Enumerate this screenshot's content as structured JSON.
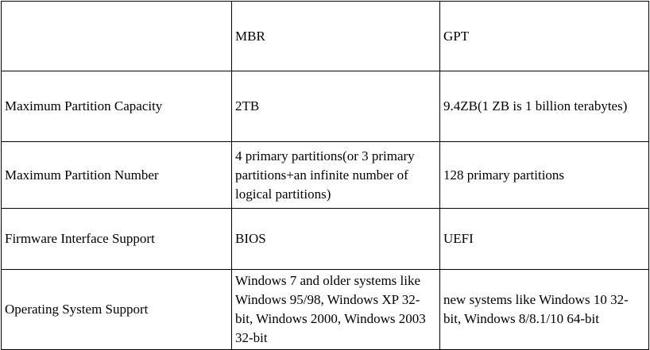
{
  "table": {
    "header": [
      "",
      "MBR",
      "GPT"
    ],
    "rows": [
      {
        "label": "Maximum Partition Capacity",
        "mbr": "2TB",
        "gpt": "9.4ZB(1 ZB is 1 billion terabytes)"
      },
      {
        "label": "Maximum Partition Number",
        "mbr": "4 primary partitions(or 3 primary partitions+an infinite number of logical partitions)",
        "gpt": "128 primary partitions"
      },
      {
        "label": "Firmware Interface Support",
        "mbr": "BIOS",
        "gpt": "UEFI"
      },
      {
        "label": "Operating System Support",
        "mbr": "Windows 7 and older systems like Windows 95/98, Windows XP 32-bit, Windows 2000, Windows 2003 32-bit",
        "gpt": "new systems like Windows 10 32-bit, Windows 8/8.1/10 64-bit"
      }
    ]
  }
}
